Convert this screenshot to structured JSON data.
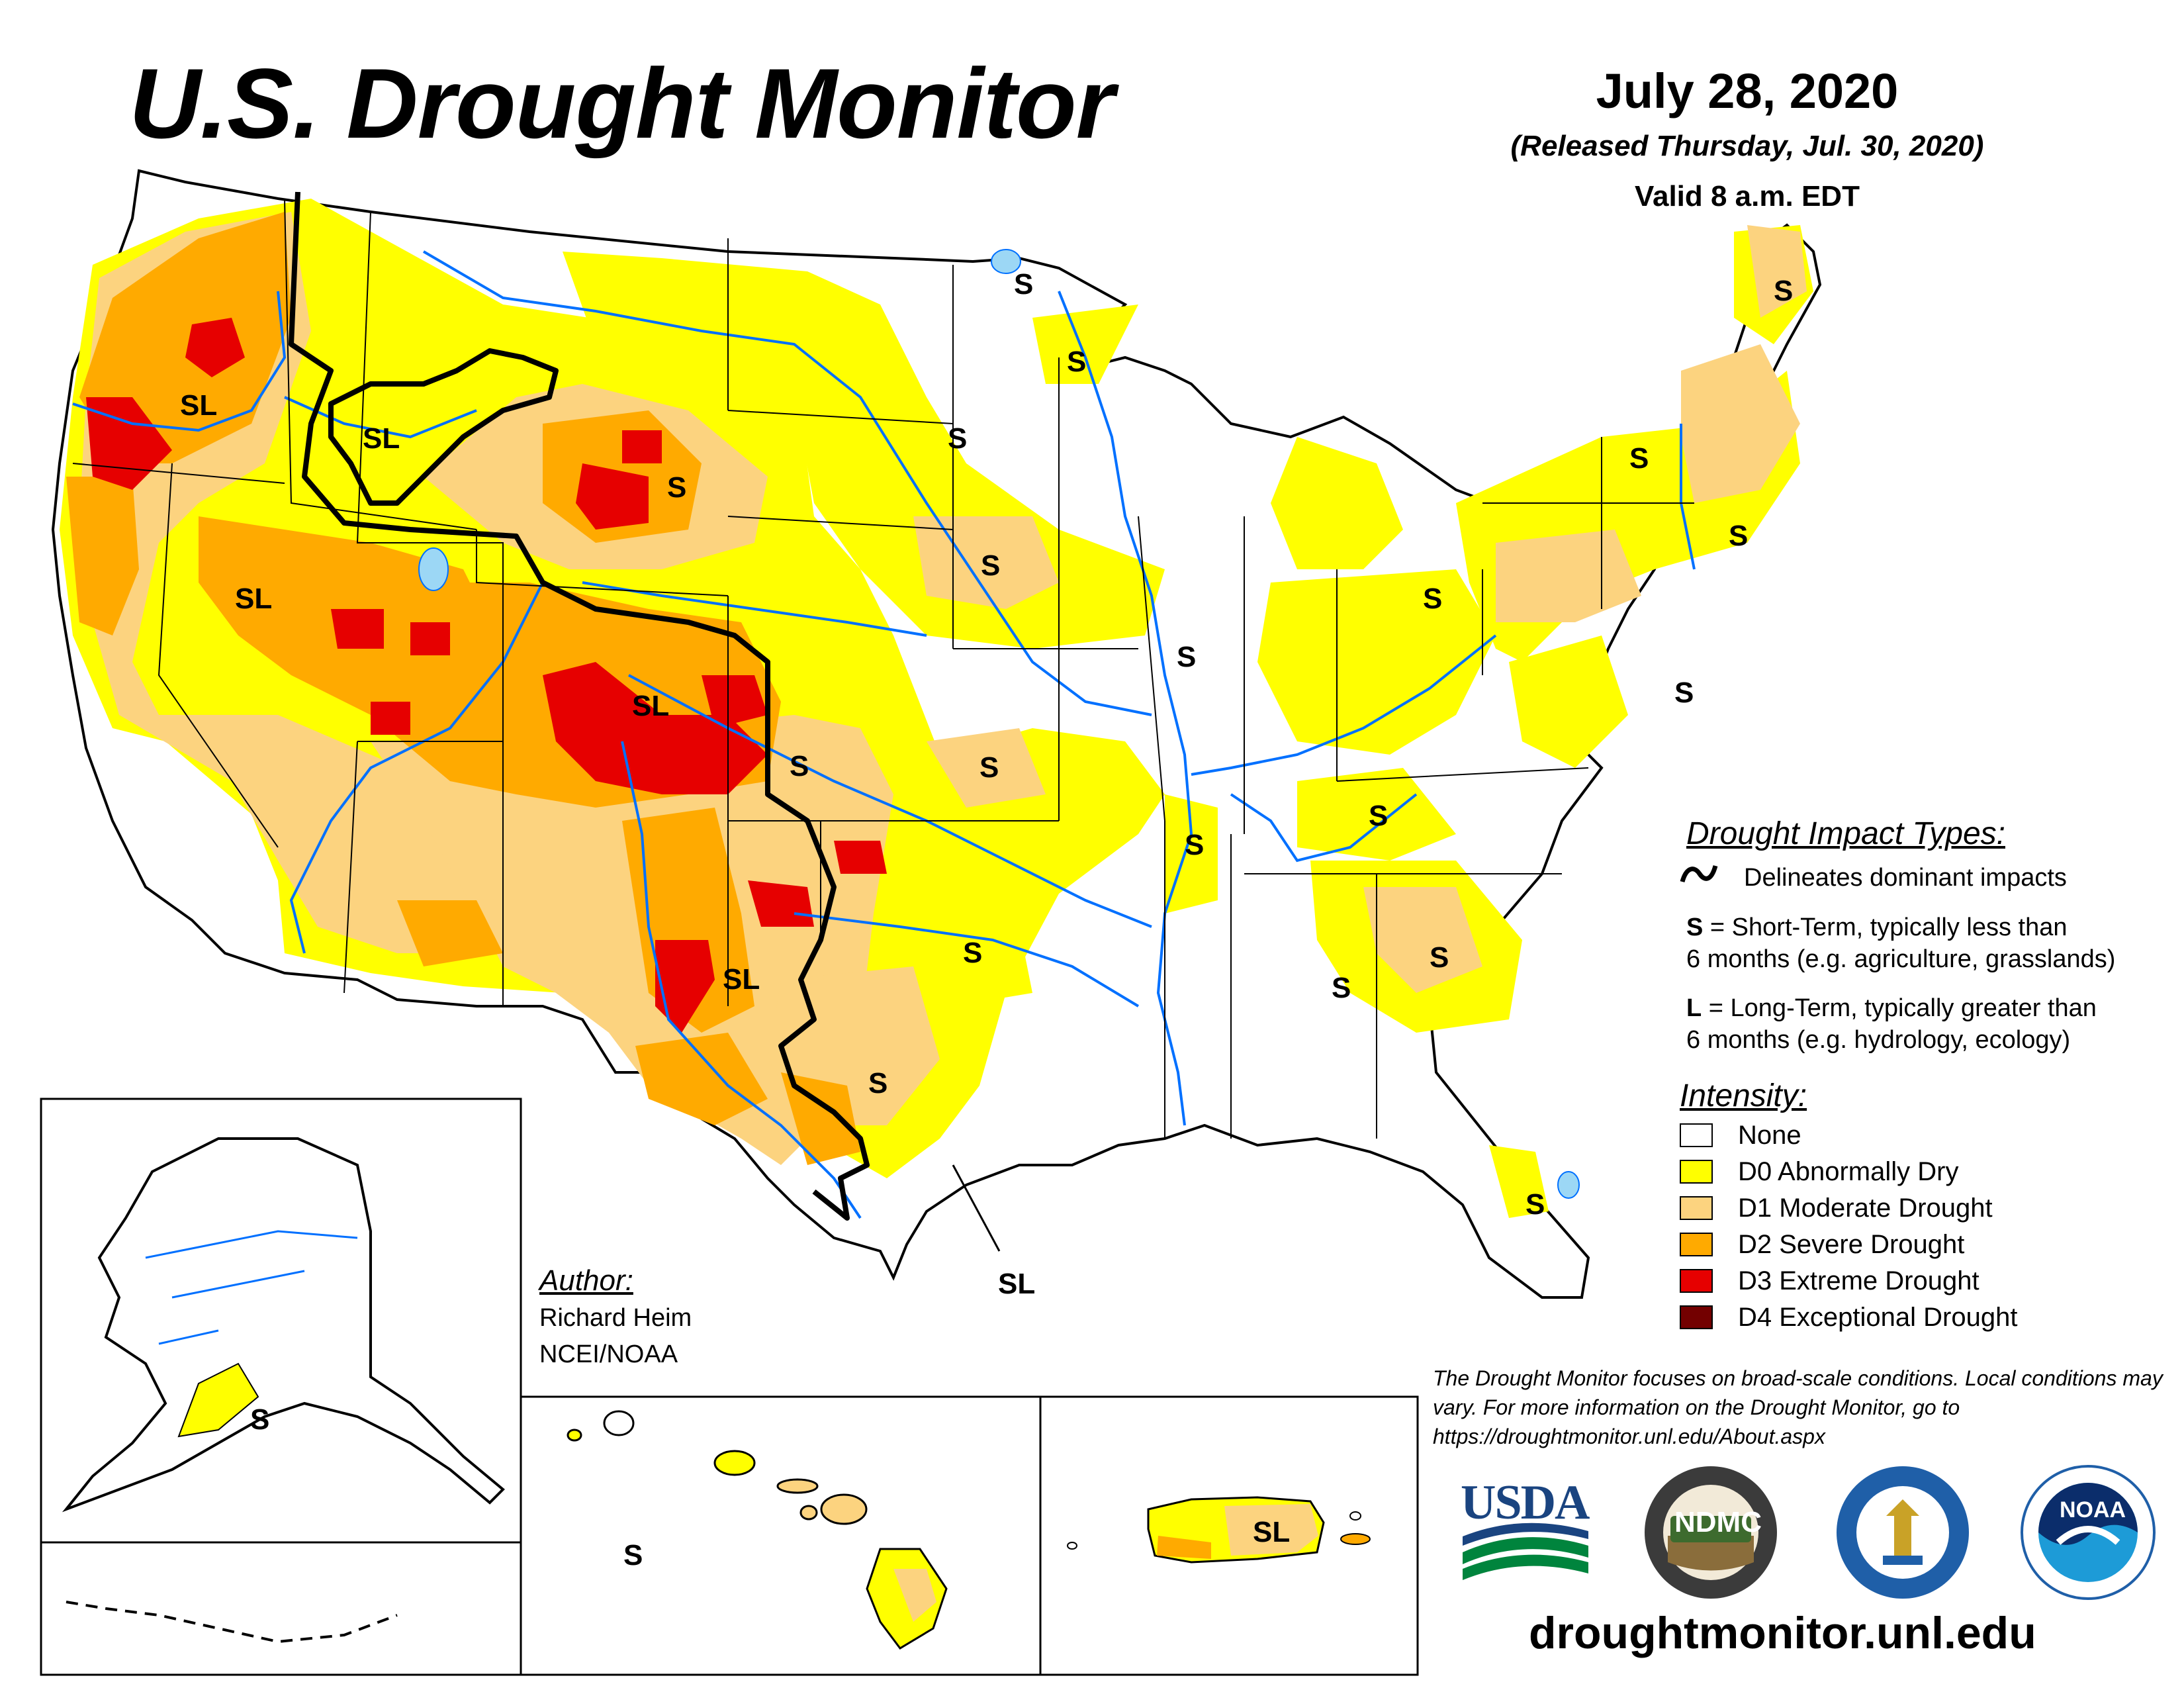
{
  "title": "U.S. Drought Monitor",
  "date": "July 28, 2020",
  "released": "(Released Thursday, Jul. 30, 2020)",
  "valid": "Valid 8 a.m. EDT",
  "colors": {
    "none": "#ffffff",
    "d0": "#ffff00",
    "d1": "#fcd37f",
    "d2": "#ffaa00",
    "d3": "#e60000",
    "d4": "#730000",
    "water": "#0070ff",
    "lake": "#9cd7f5"
  },
  "impact_types": {
    "heading": "Drought Impact Types:",
    "delineates": "Delineates dominant impacts",
    "short_term_line1": "= Short-Term, typically less than",
    "short_term_line2": "6 months (e.g. agriculture, grasslands)",
    "long_term_line1": "= Long-Term, typically greater than",
    "long_term_line2": "6 months (e.g. hydrology, ecology)",
    "s_letter": "S",
    "l_letter": "L"
  },
  "intensity": {
    "heading": "Intensity:",
    "levels": [
      {
        "label": "None",
        "color": "#ffffff"
      },
      {
        "label": "D0 Abnormally Dry",
        "color": "#ffff00"
      },
      {
        "label": "D1 Moderate Drought",
        "color": "#fcd37f"
      },
      {
        "label": "D2 Severe Drought",
        "color": "#ffaa00"
      },
      {
        "label": "D3 Extreme Drought",
        "color": "#e60000"
      },
      {
        "label": "D4 Exceptional Drought",
        "color": "#730000"
      }
    ]
  },
  "author": {
    "heading": "Author:",
    "name": "Richard Heim",
    "org": "NCEI/NOAA"
  },
  "disclaimer": "The Drought Monitor focuses on broad-scale conditions. Local conditions may vary. For more information on the Drought Monitor, go to https://droughtmonitor.unl.edu/About.aspx",
  "website": "droughtmonitor.unl.edu",
  "logos": {
    "usda": "USDA",
    "ndmc": "NDMC",
    "noaa": "NOAA"
  },
  "map_labels": {
    "sl": "SL",
    "s": "S"
  }
}
